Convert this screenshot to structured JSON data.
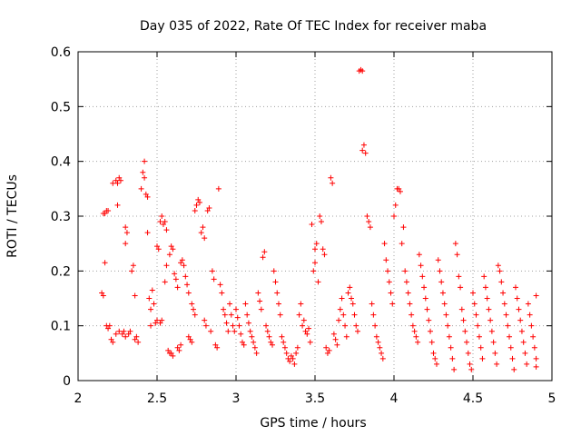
{
  "chart_data": {
    "type": "scatter",
    "title": "Day 035 of 2022, Rate Of TEC Index for receiver maba",
    "xlabel": "GPS time / hours",
    "ylabel": "ROTI / TECUs",
    "xlim": [
      2,
      5
    ],
    "ylim": [
      0,
      0.6
    ],
    "xticks": [
      2,
      2.5,
      3,
      3.5,
      4,
      4.5,
      5
    ],
    "xtick_labels": [
      "2",
      "2.5",
      "3",
      "3.5",
      "4",
      "4.5",
      "5"
    ],
    "yticks": [
      0,
      0.1,
      0.2,
      0.3,
      0.4,
      0.5,
      0.6
    ],
    "ytick_labels": [
      "0",
      "0.1",
      "0.2",
      "0.3",
      "0.4",
      "0.5",
      "0.6"
    ],
    "grid": true,
    "marker": "+",
    "color": "#ff0000",
    "series": [
      {
        "points": [
          [
            2.15,
            0.16
          ],
          [
            2.16,
            0.155
          ],
          [
            2.16,
            0.305
          ],
          [
            2.17,
            0.305
          ],
          [
            2.18,
            0.31
          ],
          [
            2.19,
            0.31
          ],
          [
            2.17,
            0.215
          ],
          [
            2.18,
            0.1
          ],
          [
            2.19,
            0.095
          ],
          [
            2.2,
            0.1
          ],
          [
            2.21,
            0.075
          ],
          [
            2.22,
            0.07
          ],
          [
            2.22,
            0.36
          ],
          [
            2.24,
            0.365
          ],
          [
            2.25,
            0.36
          ],
          [
            2.26,
            0.37
          ],
          [
            2.27,
            0.365
          ],
          [
            2.25,
            0.32
          ],
          [
            2.24,
            0.085
          ],
          [
            2.26,
            0.09
          ],
          [
            2.28,
            0.085
          ],
          [
            2.29,
            0.09
          ],
          [
            2.3,
            0.08
          ],
          [
            2.3,
            0.28
          ],
          [
            2.31,
            0.27
          ],
          [
            2.3,
            0.25
          ],
          [
            2.32,
            0.085
          ],
          [
            2.33,
            0.09
          ],
          [
            2.34,
            0.2
          ],
          [
            2.35,
            0.21
          ],
          [
            2.36,
            0.075
          ],
          [
            2.37,
            0.08
          ],
          [
            2.38,
            0.07
          ],
          [
            2.36,
            0.155
          ],
          [
            2.4,
            0.35
          ],
          [
            2.41,
            0.38
          ],
          [
            2.42,
            0.4
          ],
          [
            2.42,
            0.37
          ],
          [
            2.43,
            0.34
          ],
          [
            2.44,
            0.335
          ],
          [
            2.44,
            0.27
          ],
          [
            2.45,
            0.15
          ],
          [
            2.46,
            0.13
          ],
          [
            2.46,
            0.1
          ],
          [
            2.47,
            0.165
          ],
          [
            2.48,
            0.14
          ],
          [
            2.49,
            0.105
          ],
          [
            2.5,
            0.11
          ],
          [
            2.5,
            0.245
          ],
          [
            2.51,
            0.24
          ],
          [
            2.52,
            0.29
          ],
          [
            2.53,
            0.3
          ],
          [
            2.54,
            0.285
          ],
          [
            2.55,
            0.29
          ],
          [
            2.56,
            0.275
          ],
          [
            2.52,
            0.105
          ],
          [
            2.53,
            0.11
          ],
          [
            2.55,
            0.18
          ],
          [
            2.56,
            0.21
          ],
          [
            2.57,
            0.055
          ],
          [
            2.58,
            0.05
          ],
          [
            2.59,
            0.05
          ],
          [
            2.6,
            0.045
          ],
          [
            2.58,
            0.23
          ],
          [
            2.59,
            0.245
          ],
          [
            2.6,
            0.24
          ],
          [
            2.61,
            0.195
          ],
          [
            2.62,
            0.185
          ],
          [
            2.63,
            0.17
          ],
          [
            2.63,
            0.06
          ],
          [
            2.64,
            0.055
          ],
          [
            2.65,
            0.065
          ],
          [
            2.65,
            0.215
          ],
          [
            2.66,
            0.22
          ],
          [
            2.67,
            0.21
          ],
          [
            2.68,
            0.19
          ],
          [
            2.69,
            0.175
          ],
          [
            2.7,
            0.16
          ],
          [
            2.7,
            0.08
          ],
          [
            2.71,
            0.075
          ],
          [
            2.72,
            0.07
          ],
          [
            2.72,
            0.14
          ],
          [
            2.73,
            0.13
          ],
          [
            2.74,
            0.12
          ],
          [
            2.74,
            0.31
          ],
          [
            2.75,
            0.32
          ],
          [
            2.76,
            0.33
          ],
          [
            2.77,
            0.325
          ],
          [
            2.78,
            0.27
          ],
          [
            2.79,
            0.28
          ],
          [
            2.8,
            0.26
          ],
          [
            2.8,
            0.11
          ],
          [
            2.81,
            0.1
          ],
          [
            2.82,
            0.31
          ],
          [
            2.83,
            0.315
          ],
          [
            2.84,
            0.09
          ],
          [
            2.85,
            0.2
          ],
          [
            2.86,
            0.185
          ],
          [
            2.87,
            0.065
          ],
          [
            2.88,
            0.06
          ],
          [
            2.89,
            0.35
          ],
          [
            2.9,
            0.175
          ],
          [
            2.91,
            0.16
          ],
          [
            2.92,
            0.13
          ],
          [
            2.93,
            0.12
          ],
          [
            2.94,
            0.105
          ],
          [
            2.95,
            0.09
          ],
          [
            2.96,
            0.14
          ],
          [
            2.97,
            0.12
          ],
          [
            2.98,
            0.1
          ],
          [
            2.99,
            0.09
          ],
          [
            3.0,
            0.13
          ],
          [
            3.01,
            0.115
          ],
          [
            3.02,
            0.1
          ],
          [
            3.03,
            0.085
          ],
          [
            3.04,
            0.07
          ],
          [
            3.05,
            0.065
          ],
          [
            3.06,
            0.14
          ],
          [
            3.07,
            0.12
          ],
          [
            3.08,
            0.105
          ],
          [
            3.09,
            0.09
          ],
          [
            3.1,
            0.08
          ],
          [
            3.11,
            0.07
          ],
          [
            3.12,
            0.06
          ],
          [
            3.13,
            0.05
          ],
          [
            3.14,
            0.16
          ],
          [
            3.15,
            0.145
          ],
          [
            3.16,
            0.13
          ],
          [
            3.17,
            0.225
          ],
          [
            3.18,
            0.235
          ],
          [
            3.19,
            0.1
          ],
          [
            3.2,
            0.09
          ],
          [
            3.21,
            0.08
          ],
          [
            3.22,
            0.07
          ],
          [
            3.23,
            0.065
          ],
          [
            3.24,
            0.2
          ],
          [
            3.25,
            0.18
          ],
          [
            3.26,
            0.16
          ],
          [
            3.27,
            0.14
          ],
          [
            3.28,
            0.12
          ],
          [
            3.29,
            0.08
          ],
          [
            3.3,
            0.07
          ],
          [
            3.31,
            0.06
          ],
          [
            3.32,
            0.05
          ],
          [
            3.33,
            0.04
          ],
          [
            3.34,
            0.035
          ],
          [
            3.35,
            0.045
          ],
          [
            3.36,
            0.04
          ],
          [
            3.37,
            0.03
          ],
          [
            3.38,
            0.05
          ],
          [
            3.39,
            0.06
          ],
          [
            3.4,
            0.12
          ],
          [
            3.41,
            0.14
          ],
          [
            3.42,
            0.1
          ],
          [
            3.43,
            0.11
          ],
          [
            3.44,
            0.09
          ],
          [
            3.45,
            0.085
          ],
          [
            3.46,
            0.095
          ],
          [
            3.47,
            0.07
          ],
          [
            3.48,
            0.285
          ],
          [
            3.49,
            0.2
          ],
          [
            3.5,
            0.215
          ],
          [
            3.5,
            0.24
          ],
          [
            3.51,
            0.25
          ],
          [
            3.52,
            0.18
          ],
          [
            3.53,
            0.3
          ],
          [
            3.54,
            0.29
          ],
          [
            3.55,
            0.24
          ],
          [
            3.56,
            0.23
          ],
          [
            3.57,
            0.06
          ],
          [
            3.58,
            0.05
          ],
          [
            3.59,
            0.055
          ],
          [
            3.6,
            0.37
          ],
          [
            3.61,
            0.36
          ],
          [
            3.62,
            0.085
          ],
          [
            3.63,
            0.075
          ],
          [
            3.64,
            0.065
          ],
          [
            3.65,
            0.11
          ],
          [
            3.66,
            0.13
          ],
          [
            3.67,
            0.15
          ],
          [
            3.68,
            0.12
          ],
          [
            3.69,
            0.1
          ],
          [
            3.7,
            0.08
          ],
          [
            3.71,
            0.16
          ],
          [
            3.72,
            0.17
          ],
          [
            3.73,
            0.15
          ],
          [
            3.74,
            0.14
          ],
          [
            3.75,
            0.12
          ],
          [
            3.76,
            0.1
          ],
          [
            3.77,
            0.09
          ],
          [
            3.78,
            0.565
          ],
          [
            3.79,
            0.567
          ],
          [
            3.8,
            0.565
          ],
          [
            3.8,
            0.42
          ],
          [
            3.81,
            0.43
          ],
          [
            3.82,
            0.415
          ],
          [
            3.83,
            0.3
          ],
          [
            3.84,
            0.29
          ],
          [
            3.85,
            0.28
          ],
          [
            3.86,
            0.14
          ],
          [
            3.87,
            0.12
          ],
          [
            3.88,
            0.1
          ],
          [
            3.89,
            0.08
          ],
          [
            3.9,
            0.07
          ],
          [
            3.91,
            0.06
          ],
          [
            3.92,
            0.05
          ],
          [
            3.93,
            0.04
          ],
          [
            3.94,
            0.25
          ],
          [
            3.95,
            0.22
          ],
          [
            3.96,
            0.2
          ],
          [
            3.97,
            0.18
          ],
          [
            3.98,
            0.16
          ],
          [
            3.99,
            0.14
          ],
          [
            4.0,
            0.3
          ],
          [
            4.01,
            0.32
          ],
          [
            4.02,
            0.35
          ],
          [
            4.03,
            0.35
          ],
          [
            4.04,
            0.345
          ],
          [
            4.05,
            0.25
          ],
          [
            4.06,
            0.28
          ],
          [
            4.07,
            0.2
          ],
          [
            4.08,
            0.18
          ],
          [
            4.09,
            0.16
          ],
          [
            4.1,
            0.14
          ],
          [
            4.11,
            0.12
          ],
          [
            4.12,
            0.1
          ],
          [
            4.13,
            0.09
          ],
          [
            4.14,
            0.08
          ],
          [
            4.15,
            0.07
          ],
          [
            4.16,
            0.23
          ],
          [
            4.17,
            0.21
          ],
          [
            4.18,
            0.19
          ],
          [
            4.19,
            0.17
          ],
          [
            4.2,
            0.15
          ],
          [
            4.21,
            0.13
          ],
          [
            4.22,
            0.11
          ],
          [
            4.23,
            0.09
          ],
          [
            4.24,
            0.07
          ],
          [
            4.25,
            0.05
          ],
          [
            4.26,
            0.04
          ],
          [
            4.27,
            0.03
          ],
          [
            4.28,
            0.22
          ],
          [
            4.29,
            0.2
          ],
          [
            4.3,
            0.18
          ],
          [
            4.31,
            0.16
          ],
          [
            4.32,
            0.14
          ],
          [
            4.33,
            0.12
          ],
          [
            4.34,
            0.1
          ],
          [
            4.35,
            0.08
          ],
          [
            4.36,
            0.06
          ],
          [
            4.37,
            0.04
          ],
          [
            4.38,
            0.02
          ],
          [
            4.39,
            0.25
          ],
          [
            4.4,
            0.23
          ],
          [
            4.41,
            0.19
          ],
          [
            4.42,
            0.17
          ],
          [
            4.43,
            0.13
          ],
          [
            4.44,
            0.11
          ],
          [
            4.45,
            0.09
          ],
          [
            4.46,
            0.07
          ],
          [
            4.47,
            0.05
          ],
          [
            4.48,
            0.03
          ],
          [
            4.49,
            0.02
          ],
          [
            4.5,
            0.16
          ],
          [
            4.51,
            0.14
          ],
          [
            4.52,
            0.12
          ],
          [
            4.53,
            0.1
          ],
          [
            4.54,
            0.08
          ],
          [
            4.55,
            0.06
          ],
          [
            4.56,
            0.04
          ],
          [
            4.57,
            0.19
          ],
          [
            4.58,
            0.17
          ],
          [
            4.59,
            0.15
          ],
          [
            4.6,
            0.13
          ],
          [
            4.61,
            0.11
          ],
          [
            4.62,
            0.09
          ],
          [
            4.63,
            0.07
          ],
          [
            4.64,
            0.05
          ],
          [
            4.65,
            0.03
          ],
          [
            4.66,
            0.21
          ],
          [
            4.67,
            0.2
          ],
          [
            4.68,
            0.18
          ],
          [
            4.69,
            0.16
          ],
          [
            4.7,
            0.14
          ],
          [
            4.71,
            0.12
          ],
          [
            4.72,
            0.1
          ],
          [
            4.73,
            0.08
          ],
          [
            4.74,
            0.06
          ],
          [
            4.75,
            0.04
          ],
          [
            4.76,
            0.02
          ],
          [
            4.77,
            0.17
          ],
          [
            4.78,
            0.15
          ],
          [
            4.79,
            0.13
          ],
          [
            4.8,
            0.11
          ],
          [
            4.81,
            0.09
          ],
          [
            4.82,
            0.07
          ],
          [
            4.83,
            0.05
          ],
          [
            4.84,
            0.03
          ],
          [
            4.85,
            0.14
          ],
          [
            4.86,
            0.12
          ],
          [
            4.87,
            0.1
          ],
          [
            4.88,
            0.08
          ],
          [
            4.89,
            0.06
          ],
          [
            4.9,
            0.04
          ],
          [
            4.9,
            0.155
          ],
          [
            4.9,
            0.025
          ]
        ]
      }
    ]
  }
}
